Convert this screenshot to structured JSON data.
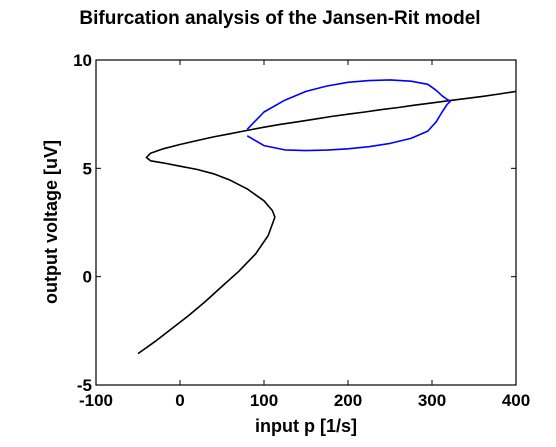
{
  "chart_data": {
    "type": "line",
    "title": "Bifurcation analysis of the Jansen-Rit model",
    "xlabel": "input p [1/s]",
    "ylabel": "output voltage [uV]",
    "xlim": [
      -100,
      400
    ],
    "ylim": [
      -5,
      10
    ],
    "xticks": [
      -100,
      0,
      100,
      200,
      300,
      400
    ],
    "yticks": [
      -5,
      0,
      5,
      10
    ],
    "grid": false,
    "legend": "none",
    "series": [
      {
        "color": "#000000",
        "x": [
          -50,
          -30,
          -10,
          10,
          30,
          50,
          70,
          90,
          105,
          113,
          110,
          100,
          80,
          60,
          40,
          20,
          0,
          -20,
          -35,
          -40,
          -35,
          -20,
          0,
          20,
          40,
          60,
          80,
          100,
          120,
          140,
          160,
          180,
          200,
          220,
          240,
          260,
          280,
          300,
          320,
          340,
          360,
          380,
          400
        ],
        "y": [
          -3.55,
          -3.0,
          -2.4,
          -1.8,
          -1.15,
          -0.45,
          0.25,
          1.05,
          1.9,
          2.75,
          3.05,
          3.5,
          4.05,
          4.45,
          4.75,
          4.95,
          5.1,
          5.25,
          5.35,
          5.5,
          5.7,
          5.9,
          6.1,
          6.28,
          6.45,
          6.6,
          6.75,
          6.9,
          7.03,
          7.15,
          7.27,
          7.39,
          7.5,
          7.6,
          7.71,
          7.81,
          7.92,
          8.02,
          8.12,
          8.22,
          8.32,
          8.43,
          8.55
        ]
      },
      {
        "color": "#0000ff",
        "x": [
          80,
          100,
          125,
          150,
          175,
          200,
          225,
          250,
          275,
          295,
          305,
          312,
          318,
          322
        ],
        "y": [
          6.8,
          7.6,
          8.15,
          8.55,
          8.8,
          8.97,
          9.05,
          9.08,
          9.02,
          8.88,
          8.6,
          8.35,
          8.18,
          8.1
        ]
      },
      {
        "color": "#0000ff",
        "x": [
          80,
          100,
          125,
          150,
          175,
          200,
          225,
          250,
          275,
          295,
          305,
          312,
          318,
          322
        ],
        "y": [
          6.5,
          6.05,
          5.85,
          5.82,
          5.84,
          5.9,
          6.0,
          6.15,
          6.38,
          6.72,
          7.15,
          7.6,
          7.95,
          8.1
        ]
      }
    ]
  }
}
